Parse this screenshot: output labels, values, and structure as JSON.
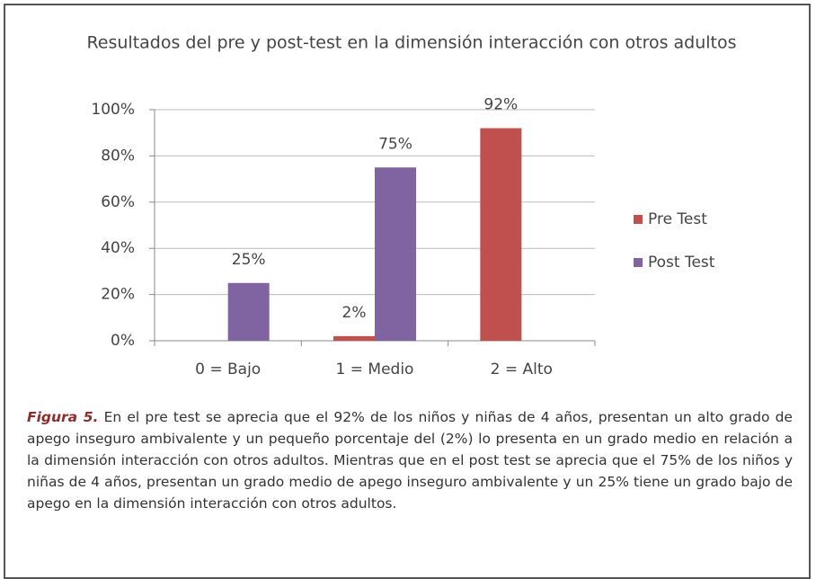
{
  "chart_data": {
    "type": "bar",
    "title": "Resultados del pre y post-test en la dimensión interacción con otros adultos",
    "categories": [
      "0 = Bajo",
      "1 = Medio",
      "2 = Alto"
    ],
    "series": [
      {
        "name": "Pre Test",
        "color": "#c0504d",
        "values": [
          null,
          2,
          92
        ],
        "value_labels": [
          null,
          "2%",
          "92%"
        ]
      },
      {
        "name": "Post Test",
        "color": "#8064a2",
        "values": [
          25,
          75,
          null
        ],
        "value_labels": [
          "25%",
          "75%",
          null
        ]
      }
    ],
    "ylim": [
      0,
      100
    ],
    "yticks": [
      {
        "value": 0,
        "label": "0%"
      },
      {
        "value": 20,
        "label": "20%"
      },
      {
        "value": 40,
        "label": "40%"
      },
      {
        "value": 60,
        "label": "60%"
      },
      {
        "value": 80,
        "label": "80%"
      },
      {
        "value": 100,
        "label": "100%"
      }
    ],
    "grid": true,
    "legend": "right"
  },
  "caption": {
    "label": "Figura 5.",
    "text": "En el pre test se aprecia que el 92% de los niños y niñas de 4 años, presentan un alto grado de apego inseguro ambivalente y un pequeño porcentaje del (2%) lo presenta en un grado medio en relación a la dimensión interacción con otros adultos. Mientras que en el post test se aprecia que el 75% de los niños y niñas de 4 años, presentan un grado medio de apego inseguro ambivalente y un 25% tiene un grado bajo de apego en la dimensión interacción con otros adultos."
  }
}
